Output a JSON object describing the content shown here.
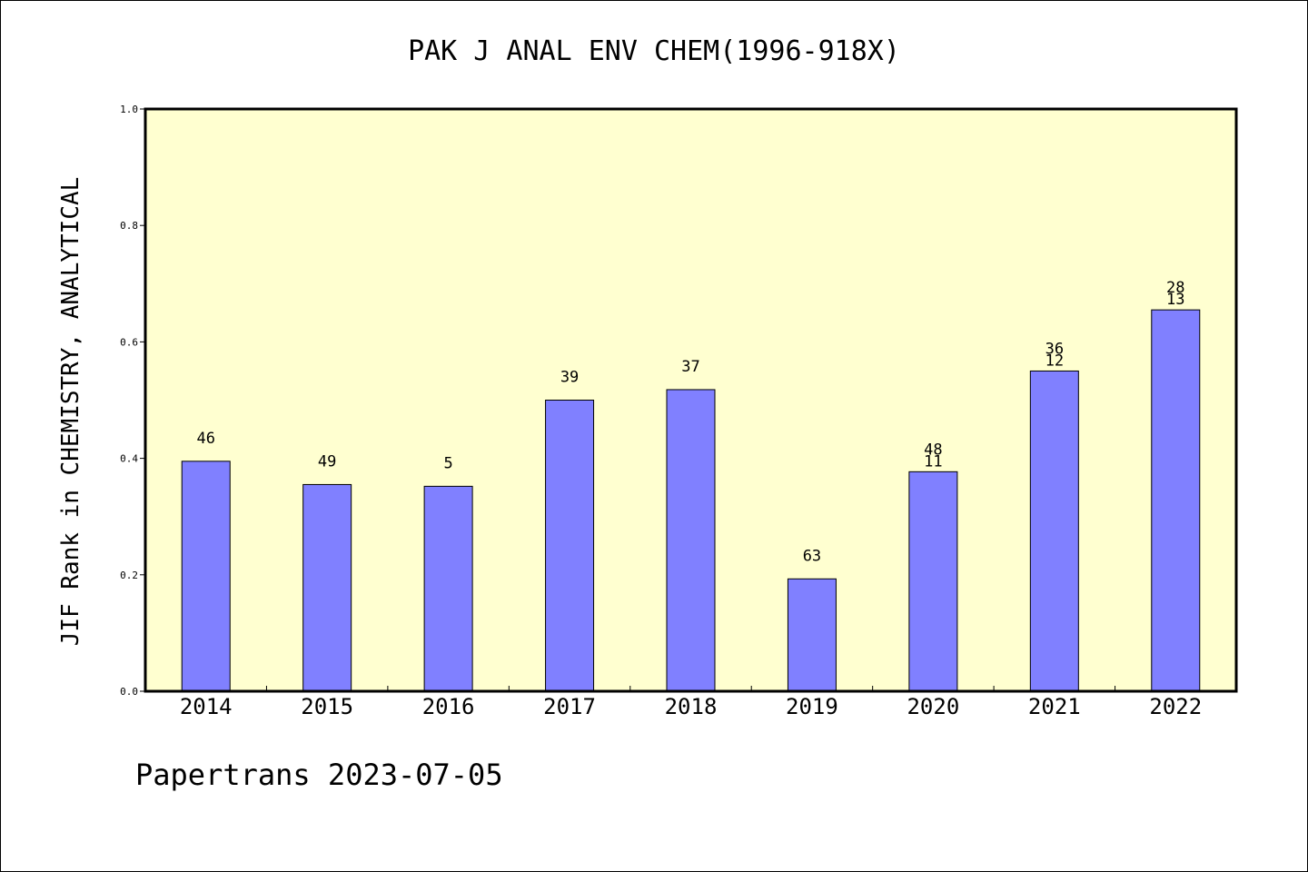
{
  "chart_data": {
    "type": "bar",
    "title": "PAK J ANAL ENV CHEM(1996-918X)",
    "ylabel": "JIF Rank in CHEMISTRY, ANALYTICAL",
    "xlabel": "",
    "ylim": [
      0,
      1.0
    ],
    "yticks": [
      "0.0",
      "0.2",
      "0.4",
      "0.6",
      "0.8",
      "1.0"
    ],
    "categories": [
      "2014",
      "2015",
      "2016",
      "2017",
      "2018",
      "2019",
      "2020",
      "2021",
      "2022"
    ],
    "values": [
      0.395,
      0.355,
      0.352,
      0.5,
      0.518,
      0.193,
      0.377,
      0.55,
      0.655
    ],
    "bar_labels": [
      [
        "46"
      ],
      [
        "49"
      ],
      [
        "5"
      ],
      [
        "39"
      ],
      [
        "37"
      ],
      [
        "63"
      ],
      [
        "48",
        "11"
      ],
      [
        "36",
        "12"
      ],
      [
        "28",
        "13"
      ]
    ],
    "grid": false,
    "colors": {
      "plot_background": "#ffffd0",
      "bar_fill": "#8080ff",
      "bar_stroke": "#000000"
    }
  },
  "footer": {
    "credit": "Papertrans 2023-07-05"
  }
}
